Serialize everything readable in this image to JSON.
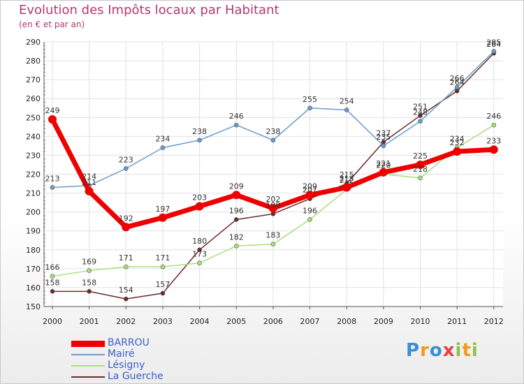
{
  "chart_data": {
    "type": "line",
    "title": "Evolution des Impôts locaux par Habitant",
    "subtitle": "(en € et par an)",
    "xlabel": "",
    "ylabel": "",
    "x": [
      "2000",
      "2001",
      "2002",
      "2003",
      "2004",
      "2005",
      "2006",
      "2007",
      "2008",
      "2009",
      "2010",
      "2011",
      "2012"
    ],
    "ylim": [
      150,
      290
    ],
    "yticks": [
      150,
      160,
      170,
      180,
      190,
      200,
      210,
      220,
      230,
      240,
      250,
      260,
      270,
      280,
      290
    ],
    "grid": true,
    "legend_position": "bottom-left",
    "series": [
      {
        "name": "BARROU",
        "color": "#ee0000",
        "values": [
          249,
          211,
          192,
          197,
          203,
          209,
          202,
          209,
          213,
          221,
          225,
          232,
          233
        ]
      },
      {
        "name": "Mairé",
        "color": "#6a9ccc",
        "values": [
          213,
          214,
          223,
          234,
          238,
          246,
          238,
          255,
          254,
          235,
          248,
          266,
          285
        ]
      },
      {
        "name": "Lésigny",
        "color": "#a9de7c",
        "values": [
          166,
          169,
          171,
          171,
          173,
          182,
          183,
          196,
          212,
          220,
          218,
          234,
          246
        ]
      },
      {
        "name": "La Guerche",
        "color": "#6b2a2a",
        "values": [
          158,
          158,
          154,
          157,
          180,
          196,
          199,
          207,
          215,
          237,
          251,
          264,
          284
        ]
      }
    ]
  },
  "logo": {
    "letters": [
      "P",
      "r",
      "o",
      "x",
      "i",
      "t",
      "i"
    ],
    "colors": [
      "#3b8ed6",
      "#f39a1b",
      "#3b8ed6",
      "#e8413a",
      "#8bc34a",
      "#f39a1b",
      "#8bc34a"
    ]
  }
}
